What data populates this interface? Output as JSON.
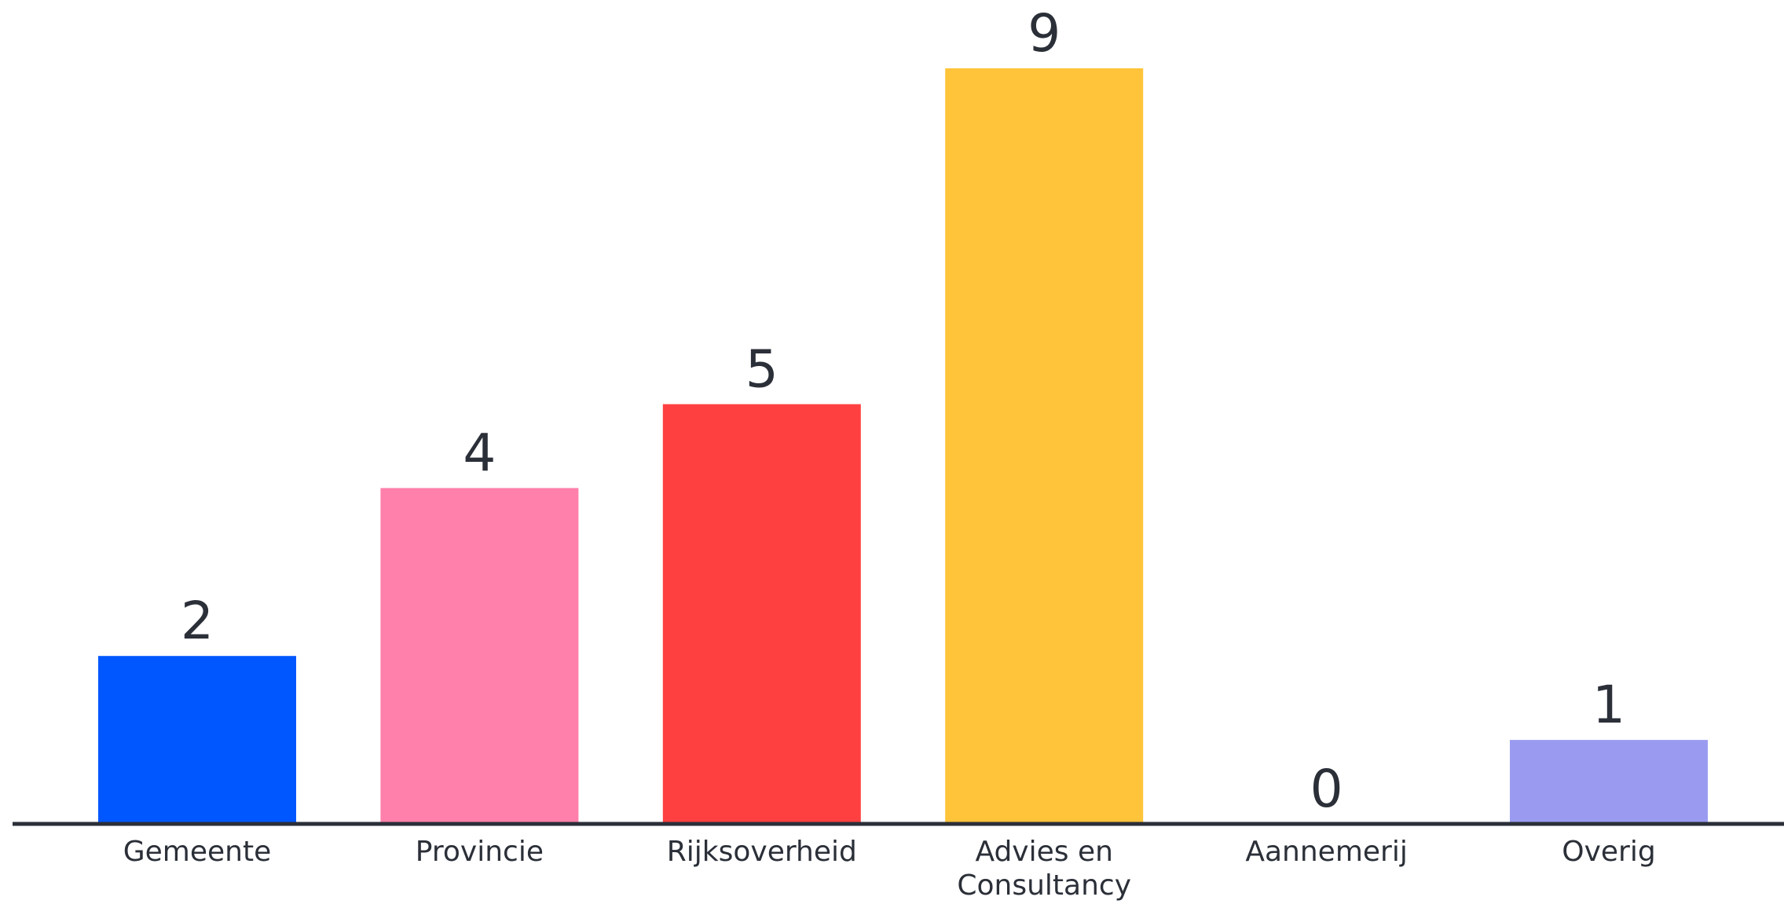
{
  "chart_data": {
    "type": "bar",
    "title": "",
    "xlabel": "",
    "ylabel": "",
    "ylim": [
      0,
      9
    ],
    "grid": false,
    "legend": "none",
    "categories": [
      [
        "Gemeente"
      ],
      [
        "Provincie"
      ],
      [
        "Rijksoverheid"
      ],
      [
        "Advies en",
        "Consultancy"
      ],
      [
        "Aannemerij"
      ],
      [
        "Overig"
      ]
    ],
    "values": [
      2,
      4,
      5,
      9,
      0,
      1
    ],
    "colors": [
      "#0057ff",
      "#ff80aa",
      "#ff4040",
      "#ffc43a",
      "#9aa2ee",
      "#9a9bf0"
    ],
    "axis_color": "#2b2f38"
  }
}
